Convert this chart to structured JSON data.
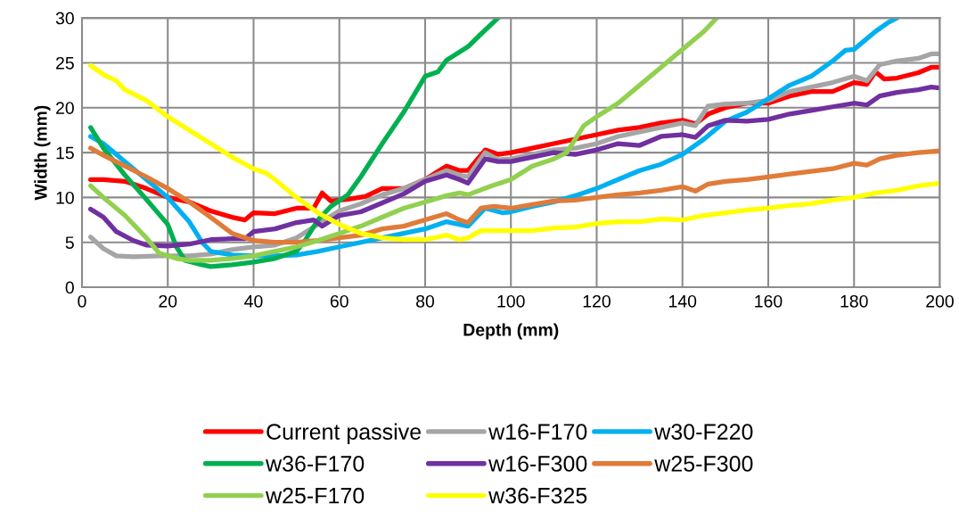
{
  "chart_data": {
    "type": "line",
    "xlabel": "Depth (mm)",
    "ylabel": "Width (mm)",
    "xlim": [
      0,
      200
    ],
    "ylim": [
      0,
      30
    ],
    "xticks": [
      0,
      20,
      40,
      60,
      80,
      100,
      120,
      140,
      160,
      180,
      200
    ],
    "yticks": [
      0,
      5,
      10,
      15,
      20,
      25,
      30
    ],
    "grid": true,
    "legend": "bottom",
    "marker": "none",
    "line_style": "solid",
    "series": [
      {
        "name": "Current passive",
        "color": "#ff0000",
        "x": [
          2,
          5,
          10,
          15,
          20,
          25,
          30,
          35,
          38,
          40,
          45,
          50,
          54,
          56,
          58,
          62,
          66,
          70,
          75,
          80,
          85,
          88,
          90,
          94,
          97,
          100,
          105,
          110,
          115,
          120,
          125,
          130,
          135,
          140,
          143,
          146,
          150,
          155,
          160,
          165,
          170,
          175,
          180,
          183,
          185,
          187,
          190,
          195,
          198,
          200
        ],
        "values": [
          12,
          12,
          11.8,
          11,
          10,
          9.5,
          8.5,
          7.8,
          7.5,
          8.3,
          8.2,
          8.8,
          8.8,
          10.5,
          9.6,
          9.8,
          10.1,
          11,
          11,
          12,
          13.5,
          13,
          13,
          15.3,
          14.8,
          15,
          15.5,
          16,
          16.5,
          17,
          17.5,
          17.8,
          18.3,
          18.6,
          18.2,
          19.3,
          20,
          20.5,
          20.5,
          21.3,
          21.8,
          21.8,
          22.8,
          22.6,
          24,
          23.2,
          23.3,
          23.9,
          24.5,
          24.5
        ]
      },
      {
        "name": "w16-F170",
        "color": "#a5a5a5",
        "x": [
          2,
          5,
          8,
          12,
          18,
          25,
          30,
          35,
          40,
          45,
          50,
          55,
          60,
          65,
          70,
          75,
          80,
          85,
          88,
          90,
          94,
          97,
          100,
          105,
          110,
          115,
          120,
          125,
          130,
          135,
          140,
          143,
          146,
          150,
          155,
          160,
          165,
          170,
          175,
          180,
          183,
          186,
          190,
          195,
          198,
          200
        ],
        "values": [
          5.6,
          4.3,
          3.5,
          3.4,
          3.5,
          3.5,
          3.7,
          4.2,
          4.5,
          4.7,
          5.5,
          7,
          8.5,
          9.3,
          10.3,
          11,
          12,
          13,
          12.5,
          12.3,
          15,
          14.2,
          14.3,
          14.8,
          15.3,
          15.5,
          16,
          16.8,
          17.3,
          17.8,
          18.3,
          18,
          20.2,
          20.4,
          20.5,
          20.8,
          21.8,
          22.3,
          22.8,
          23.5,
          23,
          24.8,
          25.2,
          25.5,
          26,
          26
        ]
      },
      {
        "name": "w30-F220",
        "color": "#00b0f0",
        "x": [
          2,
          5,
          10,
          15,
          20,
          25,
          28,
          30,
          35,
          40,
          45,
          50,
          55,
          60,
          65,
          70,
          75,
          80,
          85,
          88,
          90,
          94,
          98,
          100,
          105,
          110,
          115,
          120,
          125,
          130,
          135,
          140,
          145,
          150,
          155,
          160,
          165,
          170,
          175,
          178,
          180,
          185,
          188,
          190
        ],
        "values": [
          16.8,
          16,
          14,
          12,
          10,
          7.3,
          5,
          4,
          3.6,
          3.5,
          3.5,
          3.6,
          4,
          4.5,
          5,
          5.5,
          6,
          6.5,
          7.3,
          7,
          6.8,
          8.8,
          8.3,
          8.4,
          9,
          9.5,
          10.2,
          11,
          12,
          13,
          13.7,
          14.8,
          16.5,
          18.5,
          19.5,
          21,
          22.5,
          23.5,
          25.2,
          26.4,
          26.5,
          28.5,
          29.5,
          30
        ]
      },
      {
        "name": "w36-F170",
        "color": "#00b050",
        "x": [
          2,
          5,
          10,
          15,
          20,
          22,
          24,
          28,
          30,
          35,
          40,
          45,
          50,
          52,
          55,
          58,
          62,
          65,
          70,
          75,
          80,
          83,
          85,
          90,
          93,
          97
        ],
        "values": [
          17.8,
          15.5,
          12.5,
          9.8,
          7,
          4.5,
          3,
          2.5,
          2.3,
          2.5,
          2.8,
          3.2,
          4,
          5.2,
          7.5,
          9,
          10.3,
          12.3,
          16,
          19.5,
          23.5,
          24,
          25.3,
          26.8,
          28.2,
          30
        ]
      },
      {
        "name": "w16-F300",
        "color": "#7030a0",
        "x": [
          2,
          5,
          8,
          12,
          15,
          20,
          25,
          30,
          35,
          38,
          40,
          45,
          50,
          54,
          56,
          60,
          65,
          70,
          75,
          80,
          85,
          88,
          90,
          94,
          97,
          100,
          105,
          110,
          115,
          120,
          125,
          130,
          135,
          140,
          143,
          146,
          150,
          155,
          160,
          165,
          170,
          175,
          180,
          183,
          186,
          190,
          195,
          198,
          200
        ],
        "values": [
          8.7,
          7.8,
          6.2,
          5.2,
          4.7,
          4.6,
          4.8,
          5.3,
          5.4,
          5.4,
          6.2,
          6.5,
          7.2,
          7.5,
          6.8,
          8,
          8.4,
          9.4,
          10.4,
          11.8,
          12.5,
          12,
          11.6,
          14.3,
          14,
          14,
          14.5,
          15,
          14.8,
          15.3,
          16,
          15.8,
          16.8,
          17,
          16.7,
          18,
          18.6,
          18.5,
          18.7,
          19.3,
          19.7,
          20.1,
          20.5,
          20.3,
          21.3,
          21.7,
          22,
          22.3,
          22.2
        ]
      },
      {
        "name": "w25-F300",
        "color": "#e07b39",
        "x": [
          2,
          5,
          10,
          15,
          20,
          25,
          30,
          35,
          40,
          45,
          50,
          55,
          60,
          65,
          70,
          75,
          80,
          85,
          88,
          90,
          93,
          96,
          100,
          105,
          110,
          115,
          120,
          125,
          130,
          135,
          140,
          143,
          146,
          150,
          155,
          160,
          165,
          170,
          175,
          180,
          183,
          186,
          190,
          195,
          200
        ],
        "values": [
          15.5,
          14.7,
          13.5,
          12.3,
          11,
          9.5,
          7.8,
          6,
          5.2,
          5,
          5,
          5.2,
          5.5,
          5.8,
          6.5,
          6.8,
          7.5,
          8.2,
          7.5,
          7.2,
          8.8,
          9,
          8.8,
          9.2,
          9.6,
          9.7,
          10,
          10.3,
          10.5,
          10.8,
          11.2,
          10.7,
          11.5,
          11.8,
          12,
          12.3,
          12.6,
          12.9,
          13.2,
          13.8,
          13.6,
          14.3,
          14.7,
          15,
          15.2
        ]
      },
      {
        "name": "w25-F170",
        "color": "#92d050",
        "x": [
          2,
          5,
          10,
          15,
          18,
          22,
          25,
          30,
          35,
          40,
          45,
          50,
          55,
          60,
          65,
          70,
          75,
          80,
          85,
          88,
          90,
          95,
          100,
          105,
          110,
          113,
          117,
          120,
          125,
          130,
          135,
          140,
          145,
          148
        ],
        "values": [
          11.3,
          10,
          8,
          5.5,
          3.8,
          3.2,
          3,
          3,
          3.2,
          3.5,
          4,
          4.5,
          5.2,
          6,
          6.8,
          7.8,
          8.8,
          9.5,
          10.2,
          10.5,
          10.3,
          11.2,
          12,
          13.5,
          14.3,
          15,
          18,
          19,
          20.5,
          22.5,
          24.5,
          26.5,
          28.5,
          30
        ]
      },
      {
        "name": "w36-F325",
        "color": "#ffff00",
        "x": [
          2,
          5,
          8,
          10,
          15,
          20,
          25,
          30,
          35,
          40,
          43,
          45,
          50,
          55,
          60,
          65,
          70,
          75,
          80,
          85,
          88,
          90,
          93,
          98,
          105,
          110,
          115,
          120,
          125,
          130,
          135,
          140,
          145,
          150,
          155,
          160,
          165,
          170,
          175,
          180,
          185,
          190,
          195,
          200
        ],
        "values": [
          24.7,
          23.7,
          23,
          22,
          20.8,
          19,
          17.5,
          16,
          14.5,
          13.2,
          12.7,
          12,
          10,
          8.3,
          7,
          6,
          5.5,
          5.3,
          5.3,
          5.8,
          5.3,
          5.5,
          6.3,
          6.3,
          6.3,
          6.6,
          6.7,
          7.1,
          7.3,
          7.3,
          7.6,
          7.5,
          8,
          8.3,
          8.6,
          8.8,
          9.1,
          9.3,
          9.7,
          10,
          10.5,
          10.8,
          11.3,
          11.6
        ]
      }
    ]
  }
}
